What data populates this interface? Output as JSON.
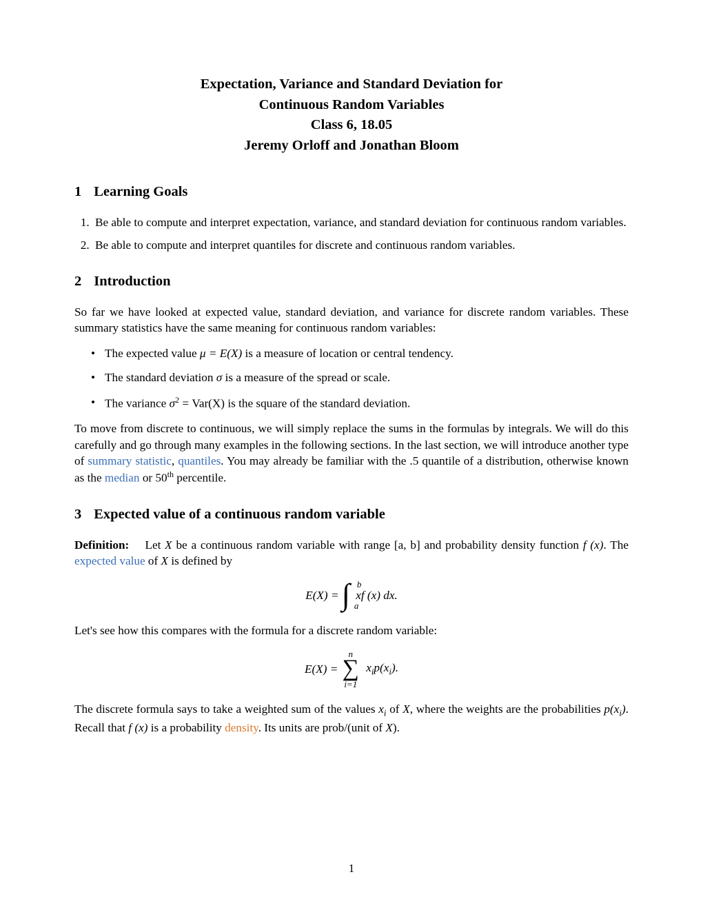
{
  "title": {
    "line1": "Expectation, Variance and Standard Deviation for",
    "line2": "Continuous Random Variables",
    "line3": "Class 6, 18.05",
    "line4": "Jeremy Orloff and Jonathan Bloom"
  },
  "sections": {
    "s1": {
      "num": "1",
      "name": "Learning Goals"
    },
    "s2": {
      "num": "2",
      "name": "Introduction"
    },
    "s3": {
      "num": "3",
      "name": "Expected value of a continuous random variable"
    }
  },
  "goals": {
    "g1": "Be able to compute and interpret expectation, variance, and standard deviation for continuous random variables.",
    "g2": "Be able to compute and interpret quantiles for discrete and continuous random variables."
  },
  "intro": {
    "p1": "So far we have looked at expected value, standard deviation, and variance for discrete random variables. These summary statistics have the same meaning for continuous random variables:",
    "b1a": "The expected value ",
    "b1b": " is a measure of location or central tendency.",
    "b2a": "The standard deviation ",
    "b2b": " is a measure of the spread or scale.",
    "b3a": "The variance ",
    "b3b": " is the square of the standard deviation.",
    "p2a": "To move from discrete to continuous, we will simply replace the sums in the formulas by integrals. We will do this carefully and go through many examples in the following sections. In the last section, we will introduce another type of ",
    "link_summary": "summary statistic",
    "p2b": ", ",
    "link_quantiles": "quantiles",
    "p2c": ". You may already be familiar with the .5 quantile of a distribution, otherwise known as the ",
    "link_median": "median",
    "p2d": " or 50",
    "p2e": " percentile."
  },
  "expected": {
    "defn_label": "Definition:",
    "defn_a": "Let ",
    "defn_b": " be a continuous random variable with range ",
    "defn_c": " and probability density function ",
    "defn_d": ". The ",
    "link_expected": "expected value",
    "defn_e": " of ",
    "defn_f": " is defined by",
    "compare": "Let's see how this compares with the formula for a discrete random variable:",
    "final_a": "The discrete formula says to take a weighted sum of the values ",
    "final_b": " of ",
    "final_c": ", where the weights are the probabilities ",
    "final_d": ". Recall that ",
    "final_e": " is a probability ",
    "link_density": "density",
    "final_f": ". Its units are prob/(unit of ",
    "final_g": ")."
  },
  "math": {
    "mu_eq": "μ = E(X)",
    "sigma": "σ",
    "sigma2": "σ",
    "sigma2_sup": "2",
    "var_eq": " = Var(X)",
    "X": "X",
    "ab": "[a, b]",
    "fx": "f (x)",
    "EX_eq": "E(X) = ",
    "int_upper": "b",
    "int_lower": "a",
    "integrand": " xf (x) dx.",
    "sum_upper": "n",
    "sum_lower": "i=1",
    "summand": " x",
    "summand_sub": "i",
    "summand2": "p(x",
    "summand2_sub": "i",
    "summand3": ").",
    "xi": "x",
    "xi_sub": "i",
    "pxi": "p(x",
    "pxi_sub": "i",
    "pxi2": ")",
    "th": "th"
  },
  "page_number": "1",
  "style": {
    "link_color": "#3a6fb7",
    "orange_color": "#d97a2e",
    "text_color": "#000000",
    "bg_color": "#ffffff",
    "body_fontsize": 17.2,
    "heading_fontsize": 20.5,
    "title_fontsize": 20.5
  }
}
